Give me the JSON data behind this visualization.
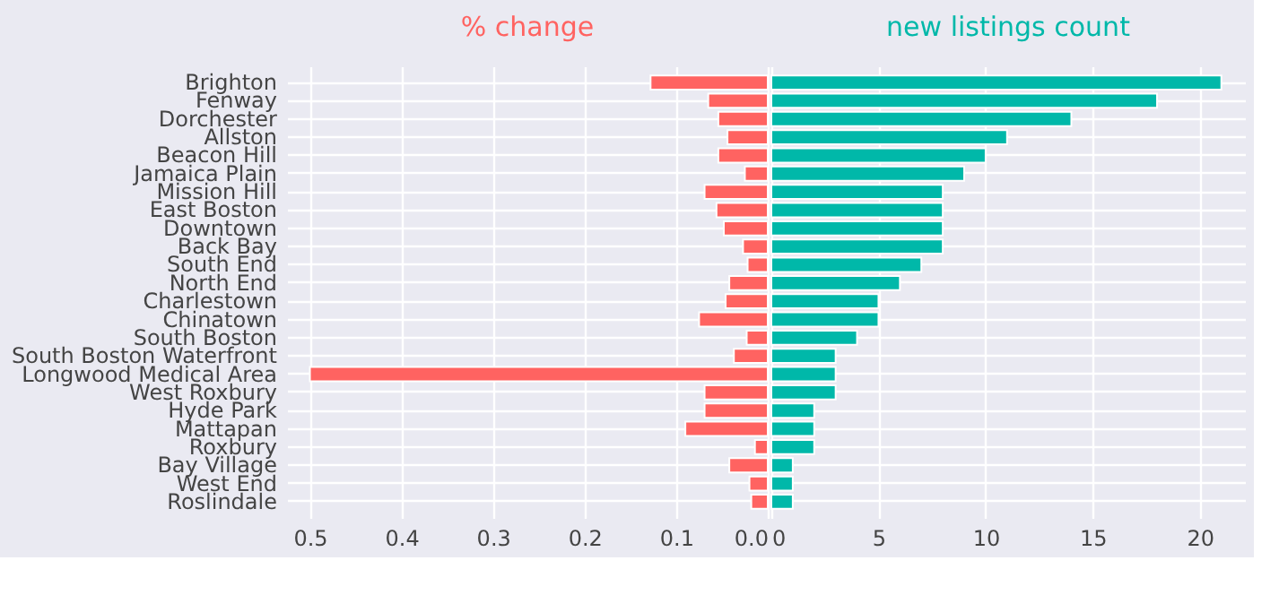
{
  "chart_data": [
    {
      "type": "bar",
      "orientation": "horizontal",
      "title": "% change",
      "color": "#ff6361",
      "grid": true,
      "categories": [
        "Brighton",
        "Fenway",
        "Dorchester",
        "Allston",
        "Beacon Hill",
        "Jamaica Plain",
        "Mission Hill",
        "East Boston",
        "Downtown",
        "Back Bay",
        "South End",
        "North End",
        "Charlestown",
        "Chinatown",
        "South Boston",
        "South Boston Waterfront",
        "Longwood Medical Area",
        "West Roxbury",
        "Hyde Park",
        "Mattapan",
        "Roxbury",
        "Bay Village",
        "West End",
        "Roslindale"
      ],
      "values": [
        0.128,
        0.065,
        0.054,
        0.044,
        0.054,
        0.025,
        0.069,
        0.056,
        0.048,
        0.027,
        0.022,
        0.042,
        0.046,
        0.075,
        0.023,
        0.037,
        0.5,
        0.069,
        0.069,
        0.09,
        0.014,
        0.042,
        0.02,
        0.018
      ],
      "xlim": [
        0.525,
        0
      ],
      "xticks": [
        0.5,
        0.4,
        0.3,
        0.2,
        0.1,
        {
          "value": 0,
          "label": "0.0"
        }
      ]
    },
    {
      "type": "bar",
      "orientation": "horizontal",
      "title": "new listings count",
      "color": "#00b8a9",
      "grid": true,
      "tick_labels": "x",
      "categories": [
        null,
        null,
        null,
        null,
        null,
        null,
        null,
        null,
        null,
        null,
        null,
        null,
        null,
        null,
        null,
        null,
        null,
        null,
        null,
        null,
        null,
        null,
        null,
        null
      ],
      "values": [
        21,
        18,
        14,
        11,
        10,
        9,
        8,
        8,
        8,
        8,
        7,
        6,
        5,
        5,
        4,
        3,
        3,
        3,
        2,
        2,
        2,
        1,
        1,
        1
      ],
      "xlim": [
        0,
        22.1
      ],
      "xticks": [
        0,
        5,
        10,
        15,
        20
      ]
    }
  ]
}
